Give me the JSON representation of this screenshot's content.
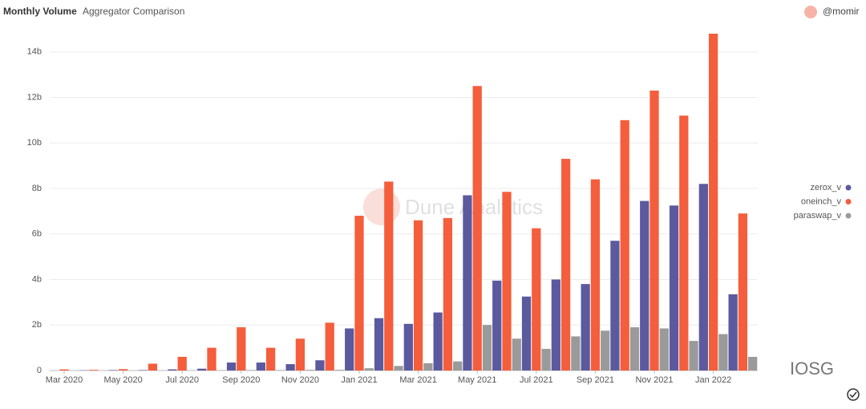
{
  "chart_data": {
    "type": "bar",
    "title": "Monthly Volume",
    "subtitle": "Aggregator Comparison",
    "author": "@momir",
    "watermark": "Dune Analytics",
    "source_watermark": "IOSG",
    "categories": [
      "Mar 2020",
      null,
      "May 2020",
      null,
      "Jul 2020",
      null,
      "Sep 2020",
      null,
      "Nov 2020",
      null,
      "Jan 2021",
      null,
      "Mar 2021",
      null,
      "May 2021",
      null,
      "Jul 2021",
      null,
      "Sep 2021",
      null,
      "Nov 2021",
      null,
      "Jan 2022",
      null
    ],
    "series": [
      {
        "name": "zerox_v",
        "color": "#5b5a9f",
        "values": [
          0,
          0.01,
          0.02,
          0.02,
          0.05,
          0.08,
          0.35,
          0.35,
          0.28,
          0.45,
          1.85,
          2.3,
          2.05,
          2.55,
          7.7,
          3.95,
          3.25,
          4.0,
          3.8,
          5.7,
          7.45,
          7.25,
          8.2,
          3.35
        ]
      },
      {
        "name": "oneinch_v",
        "color": "#f45e3c",
        "values": [
          0.05,
          0.03,
          0.06,
          0.3,
          0.6,
          1.0,
          1.9,
          1.0,
          1.4,
          2.1,
          6.8,
          8.3,
          6.6,
          6.7,
          12.5,
          7.85,
          6.25,
          9.3,
          8.4,
          11.0,
          12.3,
          11.2,
          14.8,
          6.9
        ]
      },
      {
        "name": "paraswap_v",
        "color": "#9a9a9a",
        "values": [
          0,
          0,
          0,
          0,
          0,
          0.01,
          0.02,
          0.02,
          0.03,
          0.03,
          0.1,
          0.2,
          0.32,
          0.4,
          2.0,
          1.4,
          0.95,
          1.5,
          1.75,
          1.9,
          1.85,
          1.3,
          1.6,
          0.6
        ]
      }
    ],
    "ylim": [
      0,
      14.8
    ],
    "yticks": [
      0,
      {
        "value": 2,
        "label": "2b"
      },
      {
        "value": 4,
        "label": "4b"
      },
      {
        "value": 6,
        "label": "6b"
      },
      {
        "value": 8,
        "label": "8b"
      },
      {
        "value": 10,
        "label": "10b"
      },
      {
        "value": 12,
        "label": "12b"
      },
      {
        "value": 14,
        "label": "14b"
      }
    ],
    "grid": true,
    "legend": "right"
  }
}
